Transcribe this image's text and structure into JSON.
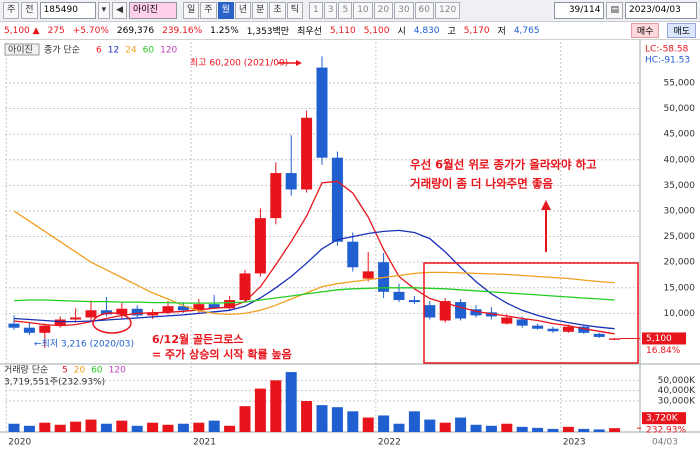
{
  "toolbar": {
    "buttons": [
      "주",
      "전"
    ],
    "code": "185490",
    "name": "아이진",
    "periods": [
      "일",
      "주",
      "월",
      "년",
      "분",
      "초",
      "틱"
    ],
    "selected_period": 2,
    "intervals": [
      "1",
      "3",
      "5",
      "10",
      "20",
      "30",
      "60",
      "120"
    ],
    "page": "39/114",
    "date": "2023/04/03"
  },
  "quote": {
    "price": "5,100",
    "direction": "▲",
    "change": "275",
    "change_pct": "+5.70%",
    "volume": "269,376",
    "volume_ratio": "239.16%",
    "turnover": "1.25%",
    "amount": "1,353백만",
    "best_label": "최우선",
    "ask": "5,110",
    "bid": "5,100",
    "open_label": "시",
    "open": "4,830",
    "high_label": "고",
    "high": "5,170",
    "low_label": "저",
    "low": "4,765",
    "buy": "매수",
    "sell": "매도"
  },
  "chart_data": {
    "type": "candlestick",
    "name": "아이진",
    "legend_label": "종가 단순",
    "up_color": "#e8141c",
    "down_color": "#1f5fd0",
    "categories": [
      "2020",
      null,
      null,
      null,
      null,
      null,
      null,
      null,
      null,
      null,
      null,
      null,
      "2021",
      null,
      null,
      null,
      null,
      null,
      null,
      null,
      null,
      null,
      null,
      null,
      "2022",
      null,
      null,
      null,
      null,
      null,
      null,
      null,
      null,
      null,
      null,
      null,
      "2023",
      null,
      null,
      null
    ],
    "end_label": "04/03",
    "ohlc": [
      [
        8000,
        9600,
        6800,
        7200
      ],
      [
        7200,
        8200,
        5800,
        6200
      ],
      [
        6200,
        8000,
        3216,
        7600
      ],
      [
        7600,
        9400,
        7200,
        8800
      ],
      [
        8800,
        11000,
        8200,
        9200
      ],
      [
        9200,
        12500,
        8600,
        10600
      ],
      [
        10600,
        13200,
        9400,
        9800
      ],
      [
        9800,
        12000,
        9000,
        10900
      ],
      [
        10900,
        11600,
        9200,
        9600
      ],
      [
        9600,
        10800,
        8900,
        10200
      ],
      [
        10200,
        12400,
        9800,
        11400
      ],
      [
        11400,
        12200,
        10100,
        10600
      ],
      [
        10600,
        12800,
        10000,
        11800
      ],
      [
        11800,
        13600,
        10800,
        11000
      ],
      [
        11000,
        13400,
        10600,
        12600
      ],
      [
        12600,
        18500,
        12200,
        17800
      ],
      [
        17800,
        30500,
        17200,
        28600
      ],
      [
        28600,
        39500,
        27400,
        37400
      ],
      [
        37400,
        44800,
        33000,
        34200
      ],
      [
        34200,
        49600,
        33600,
        48200
      ],
      [
        58000,
        60200,
        39000,
        40400
      ],
      [
        40400,
        41600,
        23200,
        24000
      ],
      [
        24000,
        25800,
        18200,
        19000
      ],
      [
        16800,
        22000,
        16200,
        18200
      ],
      [
        20000,
        21800,
        13000,
        14200
      ],
      [
        14200,
        15800,
        12200,
        12600
      ],
      [
        12600,
        13400,
        11800,
        12200
      ],
      [
        11600,
        12400,
        8800,
        9200
      ],
      [
        8600,
        13000,
        8200,
        12400
      ],
      [
        12200,
        12800,
        8600,
        9000
      ],
      [
        10800,
        11600,
        9200,
        9600
      ],
      [
        10200,
        11200,
        8800,
        9400
      ],
      [
        8000,
        9800,
        7800,
        9200
      ],
      [
        8800,
        9400,
        7200,
        7600
      ],
      [
        7600,
        8000,
        6800,
        7000
      ],
      [
        7000,
        7400,
        6200,
        6500
      ],
      [
        6400,
        7800,
        6200,
        7400
      ],
      [
        7400,
        7600,
        6000,
        6200
      ],
      [
        6000,
        6200,
        5200,
        5400
      ],
      [
        4830,
        5170,
        4765,
        5100
      ]
    ],
    "ma": [
      {
        "name": "6",
        "color": "#e8141c",
        "values": [
          8500,
          8200,
          7800,
          7600,
          7800,
          8400,
          9000,
          9600,
          10000,
          10100,
          10200,
          10400,
          10700,
          11000,
          11200,
          12300,
          15200,
          19500,
          24000,
          29000,
          35500,
          35800,
          33500,
          28800,
          22500,
          17200,
          14800,
          12900,
          12000,
          11200,
          10400,
          9900,
          9500,
          9000,
          8600,
          8000,
          7600,
          7000,
          6500,
          6000
        ]
      },
      {
        "name": "12",
        "color": "#1a2fb8",
        "values": [
          9000,
          8800,
          8600,
          8400,
          8400,
          8500,
          8700,
          8900,
          9100,
          9300,
          9500,
          9700,
          10000,
          10300,
          10600,
          11400,
          13000,
          15000,
          17200,
          19800,
          22600,
          24400,
          25000,
          25600,
          26000,
          26200,
          25800,
          24600,
          22000,
          19000,
          16200,
          13800,
          12000,
          10600,
          9600,
          8800,
          8200,
          7700,
          7300,
          7000
        ]
      },
      {
        "name": "24",
        "color": "#f0a020",
        "values": [
          30000,
          28000,
          26000,
          24000,
          22000,
          20000,
          18500,
          17000,
          15500,
          14000,
          12800,
          11500,
          10500,
          10000,
          9800,
          10000,
          10600,
          11600,
          12800,
          14000,
          15200,
          15800,
          16200,
          16600,
          17000,
          17400,
          17800,
          18000,
          18000,
          17900,
          17800,
          17700,
          17600,
          17400,
          17200,
          17000,
          16800,
          16500,
          16200,
          16000
        ]
      },
      {
        "name": "60",
        "color": "#22cc22",
        "values": [
          12500,
          12600,
          12600,
          12500,
          12400,
          12300,
          12300,
          12200,
          12200,
          12100,
          12100,
          12000,
          12000,
          12000,
          12100,
          12200,
          12600,
          13000,
          13400,
          13800,
          14200,
          14600,
          14800,
          14900,
          15000,
          15000,
          15000,
          14900,
          14800,
          14600,
          14400,
          14200,
          14000,
          13800,
          13600,
          13400,
          13200,
          13000,
          12800,
          12600
        ]
      },
      {
        "name": "120",
        "color": "#c040c0"
      }
    ],
    "ylim": [
      500,
      63000
    ],
    "yticks": [
      {
        "value": 10000,
        "label": "10,000"
      },
      {
        "value": 15000,
        "label": "15,000"
      },
      {
        "value": 20000,
        "label": "20,000"
      },
      {
        "value": 25000,
        "label": "25,000"
      },
      {
        "value": 30000,
        "label": "30,000"
      },
      {
        "value": 35000,
        "label": "35,000"
      },
      {
        "value": 40000,
        "label": "40,000"
      },
      {
        "value": 45000,
        "label": "45,000"
      },
      {
        "value": 50000,
        "label": "50,000"
      },
      {
        "value": 55000,
        "label": "55,000"
      }
    ],
    "current_price": {
      "value": 5100,
      "label": "5,100"
    },
    "current_pct": "16.84%",
    "lc": "LC:-58.58",
    "hc": "HC:-91.53",
    "annotations": [
      "최고 60,200 (2021/09)",
      "←최저 3,216 (2020/03)",
      "6/12월 골든크로스",
      "= 주가 상승의 시작 확률 높음",
      "우선 6월선 위로 종가가 올라와야 하고",
      "거래량이 좀 더 나와주면 좋음"
    ],
    "volume_label": "거래량 단순",
    "volume_ma": [
      {
        "name": "5",
        "color": "#e8141c"
      },
      {
        "name": "20",
        "color": "#f0a020"
      },
      {
        "name": "60",
        "color": "#22cc22"
      },
      {
        "name": "120",
        "color": "#c040c0"
      }
    ],
    "volume_info": "3,719,551주(232.93%)",
    "volume": [
      8000,
      6000,
      9000,
      7000,
      10000,
      12000,
      8000,
      11000,
      6000,
      9000,
      7000,
      8000,
      9000,
      11000,
      6000,
      25000,
      42000,
      50000,
      58000,
      30000,
      26000,
      24000,
      20000,
      14000,
      16000,
      8000,
      20000,
      12000,
      9000,
      14000,
      7000,
      6000,
      8000,
      5000,
      4000,
      3000,
      5000,
      3000,
      2500,
      3720
    ],
    "vol_ylim": [
      0,
      60000
    ],
    "vol_yticks": [
      {
        "value": 30000,
        "label": "30,000K"
      },
      {
        "value": 40000,
        "label": "40,000K"
      },
      {
        "value": 50000,
        "label": "50,000K"
      }
    ],
    "current_volume": {
      "value": 3720,
      "label": "3,720K"
    },
    "current_volume_pct": "232.93%"
  }
}
